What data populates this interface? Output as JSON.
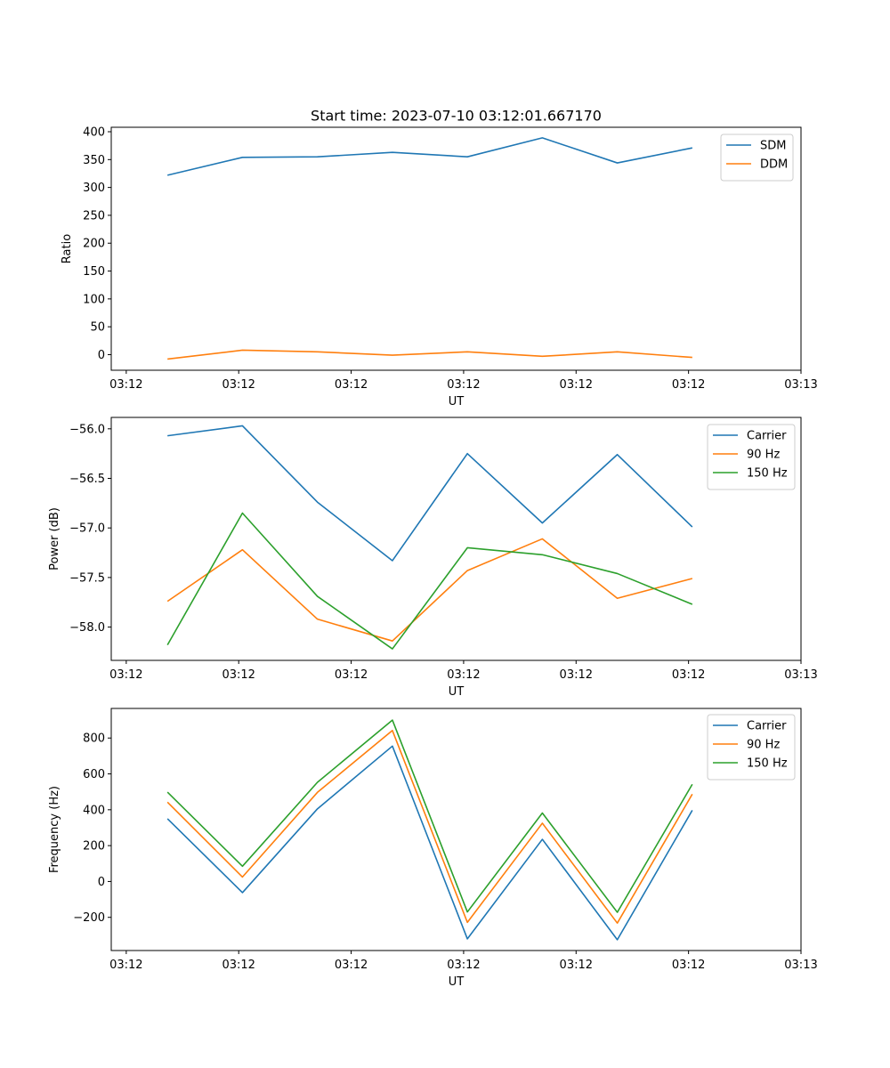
{
  "figure": {
    "title": "Start time: 2023-07-10 03:12:01.667170"
  },
  "chart_data": [
    {
      "type": "line",
      "title": "Start time: 2023-07-10 03:12:01.667170",
      "xlabel": "UT",
      "ylabel": "Ratio",
      "x": [
        0,
        1,
        2,
        3,
        4,
        5,
        6,
        7
      ],
      "xlim": [
        -0.75,
        8.45
      ],
      "x_ticks": [
        -0.55,
        0.95,
        2.45,
        3.95,
        5.45,
        6.95,
        8.45
      ],
      "x_tick_labels": [
        "03:12",
        "03:12",
        "03:12",
        "03:12",
        "03:12",
        "03:12",
        "03:13"
      ],
      "ylim": [
        -28,
        408
      ],
      "y_ticks": [
        0,
        50,
        100,
        150,
        200,
        250,
        300,
        350,
        400
      ],
      "y_tick_labels": [
        "0",
        "50",
        "100",
        "150",
        "200",
        "250",
        "300",
        "350",
        "400"
      ],
      "legend_position": "top-right",
      "series": [
        {
          "name": "SDM",
          "color": "#1f77b4",
          "values": [
            322,
            354,
            355,
            363,
            355,
            389,
            344,
            371
          ]
        },
        {
          "name": "DDM",
          "color": "#ff7f0e",
          "values": [
            -8,
            8,
            5,
            -1,
            5,
            -3,
            5,
            -5
          ]
        }
      ]
    },
    {
      "type": "line",
      "title": "",
      "xlabel": "UT",
      "ylabel": "Power (dB)",
      "x": [
        0,
        1,
        2,
        3,
        4,
        5,
        6,
        7
      ],
      "xlim": [
        -0.75,
        8.45
      ],
      "x_ticks": [
        -0.55,
        0.95,
        2.45,
        3.95,
        5.45,
        6.95,
        8.45
      ],
      "x_tick_labels": [
        "03:12",
        "03:12",
        "03:12",
        "03:12",
        "03:12",
        "03:12",
        "03:13"
      ],
      "ylim": [
        -58.336,
        -55.885
      ],
      "y_ticks": [
        -58.0,
        -57.5,
        -57.0,
        -56.5,
        -56.0
      ],
      "y_tick_labels": [
        "−58.0",
        "−57.5",
        "−57.0",
        "−56.5",
        "−56.0"
      ],
      "legend_position": "top-right",
      "series": [
        {
          "name": "Carrier",
          "color": "#1f77b4",
          "values": [
            -56.07,
            -55.97,
            -56.74,
            -57.33,
            -56.25,
            -56.95,
            -56.26,
            -56.99
          ]
        },
        {
          "name": "90 Hz",
          "color": "#ff7f0e",
          "values": [
            -57.74,
            -57.22,
            -57.92,
            -58.14,
            -57.43,
            -57.11,
            -57.71,
            -57.51
          ]
        },
        {
          "name": "150 Hz",
          "color": "#2ca02c",
          "values": [
            -58.18,
            -56.85,
            -57.69,
            -58.22,
            -57.2,
            -57.27,
            -57.46,
            -57.77
          ]
        }
      ]
    },
    {
      "type": "line",
      "title": "",
      "xlabel": "UT",
      "ylabel": "Frequency (Hz)",
      "x": [
        0,
        1,
        2,
        3,
        4,
        5,
        6,
        7
      ],
      "xlim": [
        -0.75,
        8.45
      ],
      "x_ticks": [
        -0.55,
        0.95,
        2.45,
        3.95,
        5.45,
        6.95,
        8.45
      ],
      "x_tick_labels": [
        "03:12",
        "03:12",
        "03:12",
        "03:12",
        "03:12",
        "03:12",
        "03:13"
      ],
      "ylim": [
        -385,
        965
      ],
      "y_ticks": [
        -200,
        0,
        200,
        400,
        600,
        800
      ],
      "y_tick_labels": [
        "−200",
        "0",
        "200",
        "400",
        "600",
        "800"
      ],
      "legend_position": "top-right",
      "series": [
        {
          "name": "Carrier",
          "color": "#1f77b4",
          "values": [
            350,
            -62,
            405,
            755,
            -320,
            235,
            -325,
            397
          ]
        },
        {
          "name": "90 Hz",
          "color": "#ff7f0e",
          "values": [
            442,
            25,
            497,
            842,
            -228,
            325,
            -232,
            487
          ]
        },
        {
          "name": "150 Hz",
          "color": "#2ca02c",
          "values": [
            498,
            85,
            553,
            900,
            -170,
            382,
            -172,
            542
          ]
        }
      ]
    }
  ]
}
